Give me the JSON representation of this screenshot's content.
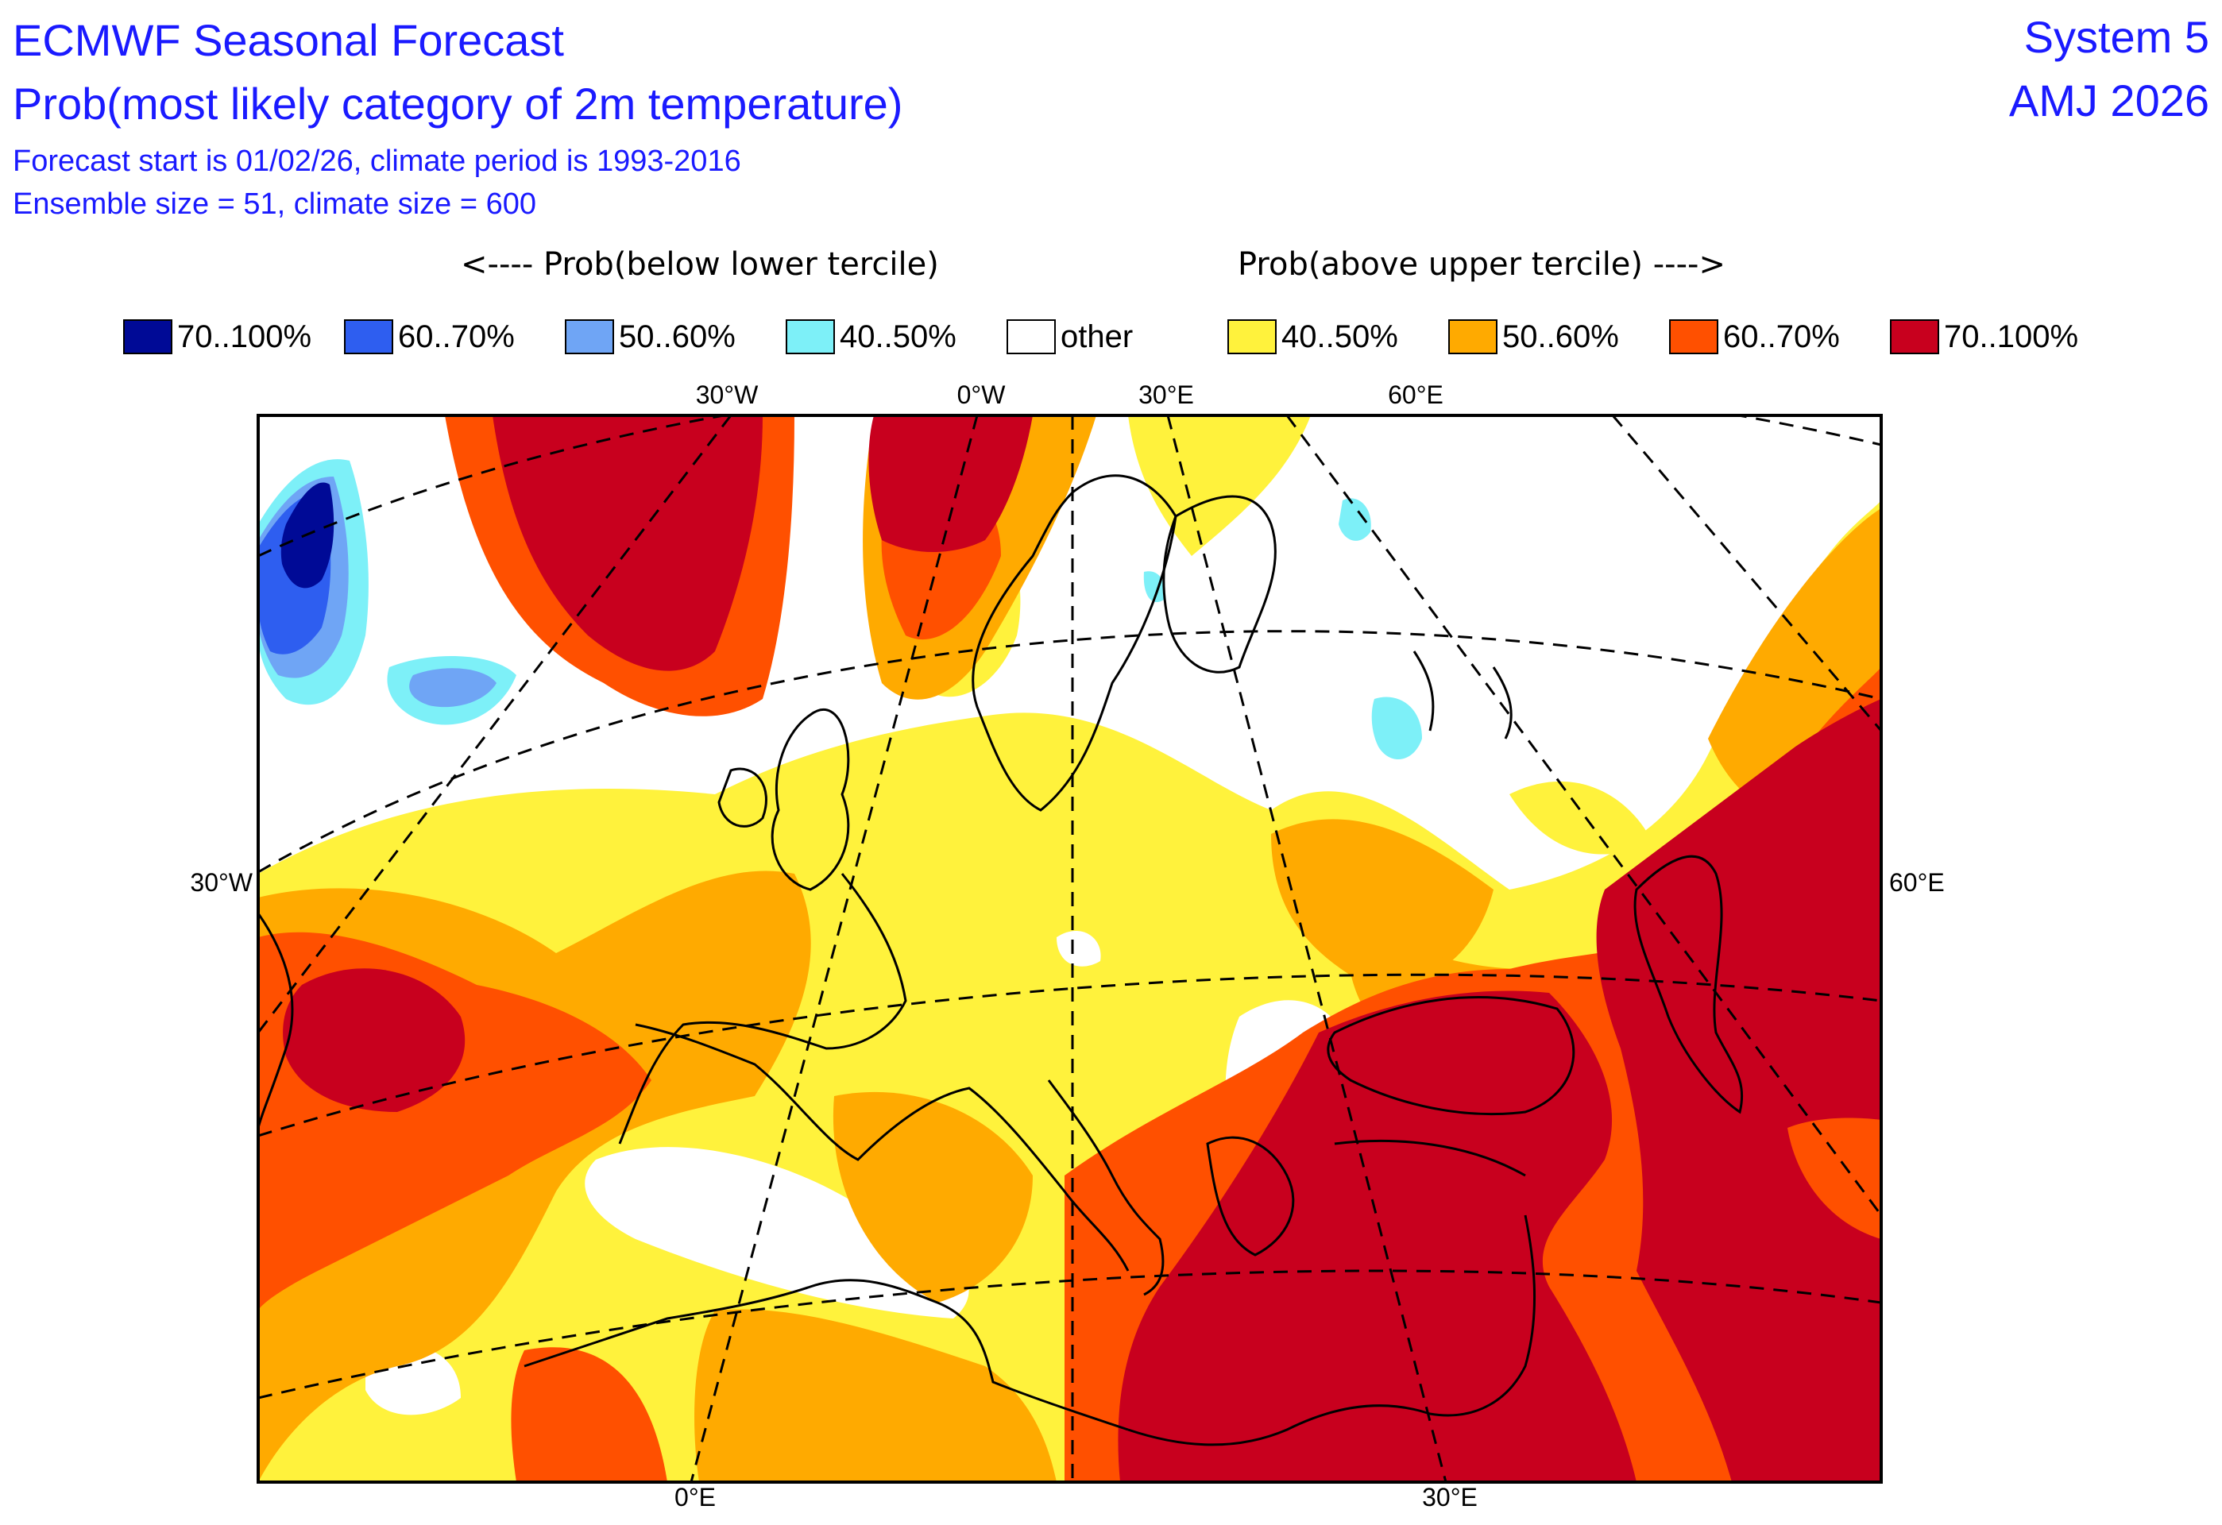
{
  "header": {
    "title": "ECMWF Seasonal Forecast",
    "subtitle": "Prob(most likely category of 2m temperature)",
    "info_line1": "Forecast start is 01/02/26, climate period is 1993-2016",
    "info_line2": "Ensemble size = 51, climate size = 600",
    "system": "System 5",
    "period": "AMJ 2026"
  },
  "legend": {
    "caption_below": "<---- Prob(below lower tercile)",
    "caption_above": "Prob(above upper tercile) ---->",
    "items": [
      {
        "label": "70..100%",
        "color": "#000a96"
      },
      {
        "label": "60..70%",
        "color": "#2e5ef0"
      },
      {
        "label": "50..60%",
        "color": "#6fa5f5"
      },
      {
        "label": "40..50%",
        "color": "#7df0f8"
      },
      {
        "label": "other",
        "color": "#ffffff"
      },
      {
        "label": "40..50%",
        "color": "#fff23c"
      },
      {
        "label": "50..60%",
        "color": "#ffaa00"
      },
      {
        "label": "60..70%",
        "color": "#ff5000"
      },
      {
        "label": "70..100%",
        "color": "#c8001e"
      }
    ]
  },
  "map": {
    "top_labels": [
      "30°W",
      "0°W",
      "30°E",
      "60°E"
    ],
    "left_label": "30°W",
    "right_label": "60°E",
    "bottom_labels": [
      "0°E",
      "30°E"
    ]
  }
}
